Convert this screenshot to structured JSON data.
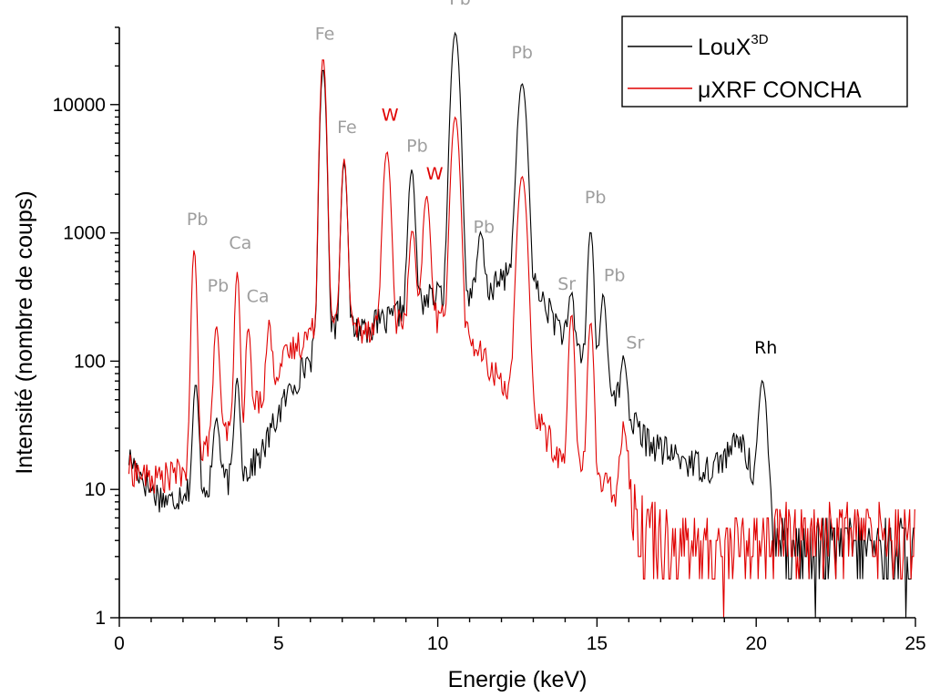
{
  "chart_data": {
    "type": "line",
    "xlabel": "Energie (keV)",
    "ylabel": "Intensité (nombre de coups)",
    "xlim": [
      0,
      25
    ],
    "ylim": [
      1,
      40000
    ],
    "yscale": "log",
    "x_ticks": [
      0,
      5,
      10,
      15,
      20,
      25
    ],
    "x_tick_labels": [
      "0",
      "5",
      "10",
      "15",
      "20",
      "25"
    ],
    "y_ticks": [
      1,
      10,
      100,
      1000,
      10000
    ],
    "y_tick_labels": [
      "1",
      "10",
      "100",
      "1000",
      "10000"
    ],
    "grid": false,
    "legend_position": "top-right",
    "colors": {
      "loux": "#000000",
      "uxrf": "#e00000",
      "peak_label": "#9e9e9e",
      "w_label": "#e00000",
      "rh_label": "#000000"
    },
    "series": [
      {
        "name": "LouX3D",
        "legend_main": "LouX",
        "legend_sup": "3D",
        "color": "#000000",
        "baseline": [
          [
            0.3,
            18
          ],
          [
            1.0,
            10
          ],
          [
            1.6,
            8
          ],
          [
            2.0,
            10
          ],
          [
            3.0,
            11
          ],
          [
            4.0,
            14
          ],
          [
            4.5,
            20
          ],
          [
            5.0,
            40
          ],
          [
            5.5,
            70
          ],
          [
            6.0,
            110
          ],
          [
            6.5,
            200
          ],
          [
            7.5,
            185
          ],
          [
            8.5,
            210
          ],
          [
            9.0,
            280
          ],
          [
            10.0,
            330
          ],
          [
            10.8,
            330
          ],
          [
            11.5,
            360
          ],
          [
            12.0,
            420
          ],
          [
            12.5,
            700
          ],
          [
            13.0,
            400
          ],
          [
            13.5,
            250
          ],
          [
            14.0,
            160
          ],
          [
            14.5,
            120
          ],
          [
            15.0,
            100
          ],
          [
            15.5,
            65
          ],
          [
            16.0,
            38
          ],
          [
            16.5,
            25
          ],
          [
            17.5,
            18
          ],
          [
            18.5,
            15
          ],
          [
            19.0,
            18
          ],
          [
            19.5,
            25
          ],
          [
            20.0,
            12
          ],
          [
            20.6,
            5
          ],
          [
            21.0,
            3
          ],
          [
            23.0,
            3
          ],
          [
            25.0,
            3
          ]
        ],
        "peaks": [
          [
            2.4,
            55,
            0.07
          ],
          [
            3.05,
            25,
            0.08
          ],
          [
            3.7,
            60,
            0.07
          ],
          [
            6.4,
            19000,
            0.07
          ],
          [
            7.06,
            3400,
            0.07
          ],
          [
            9.18,
            2800,
            0.08
          ],
          [
            10.55,
            36000,
            0.1
          ],
          [
            11.35,
            650,
            0.08
          ],
          [
            12.65,
            14000,
            0.11
          ],
          [
            14.2,
            190,
            0.07
          ],
          [
            14.8,
            950,
            0.07
          ],
          [
            15.2,
            250,
            0.07
          ],
          [
            15.85,
            65,
            0.07
          ],
          [
            20.2,
            60,
            0.1
          ]
        ]
      },
      {
        "name": "μXRF CONCHA",
        "color": "#e00000",
        "baseline": [
          [
            0.3,
            15
          ],
          [
            1.0,
            12
          ],
          [
            2.0,
            14
          ],
          [
            2.4,
            20
          ],
          [
            3.0,
            25
          ],
          [
            4.0,
            35
          ],
          [
            4.8,
            80
          ],
          [
            5.5,
            130
          ],
          [
            6.0,
            170
          ],
          [
            6.5,
            200
          ],
          [
            7.5,
            185
          ],
          [
            8.5,
            200
          ],
          [
            9.0,
            200
          ],
          [
            10.0,
            220
          ],
          [
            10.5,
            200
          ],
          [
            11.0,
            150
          ],
          [
            11.5,
            100
          ],
          [
            12.0,
            70
          ],
          [
            12.5,
            60
          ],
          [
            13.0,
            40
          ],
          [
            13.5,
            25
          ],
          [
            14.0,
            15
          ],
          [
            14.5,
            15
          ],
          [
            15.0,
            12
          ],
          [
            15.5,
            10
          ],
          [
            16.0,
            6
          ],
          [
            17.0,
            4
          ],
          [
            18.0,
            3
          ],
          [
            19.0,
            3
          ],
          [
            20.0,
            3.5
          ],
          [
            21.0,
            4
          ],
          [
            25.0,
            4
          ]
        ],
        "peaks": [
          [
            2.35,
            720,
            0.06
          ],
          [
            3.05,
            165,
            0.07
          ],
          [
            3.7,
            460,
            0.06
          ],
          [
            4.05,
            150,
            0.06
          ],
          [
            4.7,
            130,
            0.06
          ],
          [
            6.4,
            23000,
            0.07
          ],
          [
            7.06,
            3600,
            0.07
          ],
          [
            8.4,
            4100,
            0.09
          ],
          [
            9.2,
            850,
            0.08
          ],
          [
            9.65,
            1700,
            0.09
          ],
          [
            10.55,
            7800,
            0.1
          ],
          [
            12.65,
            2700,
            0.11
          ],
          [
            14.2,
            220,
            0.07
          ],
          [
            14.8,
            190,
            0.07
          ],
          [
            15.85,
            25,
            0.1
          ]
        ]
      }
    ],
    "annotations": [
      {
        "text": "Pb",
        "x": 2.45,
        "y": 1150,
        "color": "peak"
      },
      {
        "text": "Pb",
        "x": 3.1,
        "y": 350,
        "color": "peak"
      },
      {
        "text": "Ca",
        "x": 3.8,
        "y": 750,
        "color": "peak"
      },
      {
        "text": "Ca",
        "x": 4.35,
        "y": 290,
        "color": "peak"
      },
      {
        "text": "Fe",
        "x": 6.45,
        "y": 32000,
        "color": "peak"
      },
      {
        "text": "Fe",
        "x": 7.15,
        "y": 6000,
        "color": "peak"
      },
      {
        "text": "W",
        "x": 8.5,
        "y": 7500,
        "color": "w"
      },
      {
        "text": "Pb",
        "x": 9.35,
        "y": 4300,
        "color": "peak"
      },
      {
        "text": "W",
        "x": 9.9,
        "y": 2600,
        "color": "w"
      },
      {
        "text": "Pb",
        "x": 10.7,
        "y": 60000,
        "color": "peak"
      },
      {
        "text": "Pb",
        "x": 11.45,
        "y": 1000,
        "color": "peak"
      },
      {
        "text": "Pb",
        "x": 12.65,
        "y": 23000,
        "color": "peak"
      },
      {
        "text": "Sr",
        "x": 14.05,
        "y": 360,
        "color": "peak"
      },
      {
        "text": "Pb",
        "x": 14.95,
        "y": 1700,
        "color": "peak"
      },
      {
        "text": "Pb",
        "x": 15.55,
        "y": 420,
        "color": "peak"
      },
      {
        "text": "Sr",
        "x": 16.2,
        "y": 125,
        "color": "peak"
      },
      {
        "text": "Rh",
        "x": 20.3,
        "y": 115,
        "color": "rh"
      }
    ]
  }
}
